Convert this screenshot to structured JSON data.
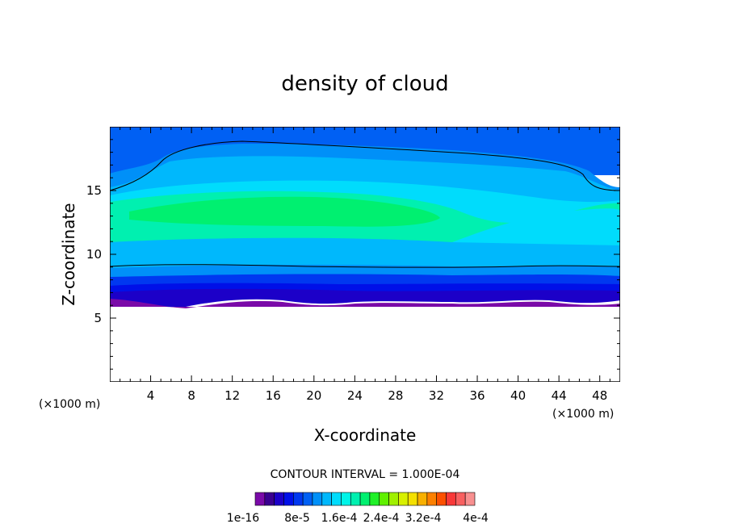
{
  "chart_data": {
    "type": "heatmap",
    "title": "density of cloud",
    "xlabel": "X-coordinate",
    "ylabel": "Z-coordinate",
    "x_unit_label_left": "(×1000 m)",
    "x_unit_label_right": "(×1000 m)",
    "xlim": [
      0,
      50
    ],
    "ylim": [
      0,
      20
    ],
    "x_ticks": [
      4,
      8,
      12,
      16,
      20,
      24,
      28,
      32,
      36,
      40,
      44,
      48
    ],
    "y_ticks": [
      5,
      10,
      15
    ],
    "contour_interval_text": "CONTOUR INTERVAL = 1.000E-04",
    "colorbar": {
      "colors": [
        "#7a0aa8",
        "#3a0090",
        "#1c00c8",
        "#0010e8",
        "#0038f0",
        "#0060f4",
        "#0090f8",
        "#00b8fc",
        "#00dcfc",
        "#00f4e8",
        "#00f0b0",
        "#00f070",
        "#20f028",
        "#60f000",
        "#a0f000",
        "#d8f000",
        "#f4e000",
        "#f8b000",
        "#fc8000",
        "#fc5000",
        "#f83838",
        "#f86060",
        "#f89090"
      ],
      "labels": [
        "1e-16",
        "8e-5",
        "1.6e-4",
        "2.4e-4",
        "3.2e-4",
        "4e-4"
      ]
    },
    "field_description_bands": [
      {
        "z_bottom": 6.0,
        "z_top": 6.8,
        "color": "#7a0aa8"
      },
      {
        "z_bottom": 6.8,
        "z_top": 7.6,
        "color": "#1c00c8"
      },
      {
        "z_bottom": 7.6,
        "z_top": 8.6,
        "color": "#0038f0"
      },
      {
        "z_bottom": 8.6,
        "z_top": 10.0,
        "color": "#00b8fc"
      },
      {
        "z_bottom": 10.0,
        "z_top": 14.5,
        "color": "#00f0b0"
      },
      {
        "z_bottom": 14.5,
        "z_top": 17.0,
        "color": "#00dcfc"
      },
      {
        "z_bottom": 17.0,
        "z_top": 20.0,
        "color": "#0060f4"
      }
    ]
  }
}
